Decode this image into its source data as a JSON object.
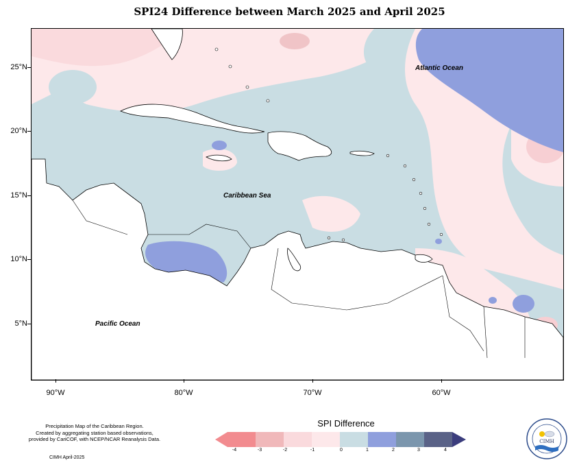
{
  "map": {
    "title": "SPI24 Difference between March 2025 and April 2025",
    "latitude_labels": [
      "25°N",
      "20°N",
      "15°N",
      "10°N",
      "5°N"
    ],
    "longitude_labels": [
      "90°W",
      "80°W",
      "70°W",
      "60°W"
    ],
    "region_labels": {
      "atlantic": "Atlantic Ocean",
      "caribbean": "Caribbean Sea",
      "pacific": "Pacific Ocean"
    }
  },
  "legend": {
    "title": "SPI Difference",
    "ticks": [
      "-4",
      "-3",
      "-2",
      "-1",
      "0",
      "1",
      "2",
      "3",
      "4"
    ],
    "colors": [
      "#f28b8f",
      "#f0b8ba",
      "#fadadd",
      "#fde8ea",
      "#c9dde3",
      "#8f9fdd",
      "#7b96ad",
      "#5a6287",
      "#3b3d7d"
    ]
  },
  "footer": {
    "description_line1": "Precipitation Map of the Caribbean Region.",
    "description_line2": "Created by aggregating station based observations,",
    "description_line3": "provided by CariCOF, with NCEP/NCAR Reanalysis Data.",
    "credit": "CIMH April-2025"
  },
  "logo": {
    "org_short": "CIMH"
  }
}
